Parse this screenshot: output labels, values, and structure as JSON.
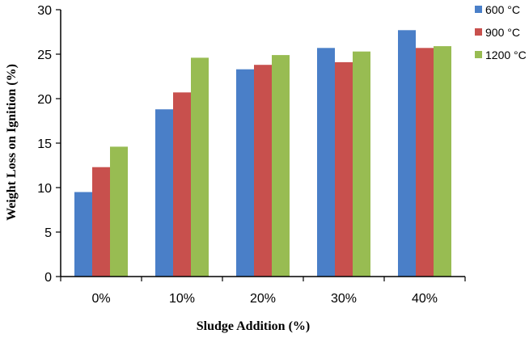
{
  "chart_data": {
    "type": "bar",
    "title": "",
    "xlabel": "Sludge Addition (%)",
    "ylabel": "Weight Loss on Ignition (%)",
    "categories": [
      "0%",
      "10%",
      "20%",
      "30%",
      "40%"
    ],
    "ylim": [
      0,
      30
    ],
    "yticks": [
      0,
      5,
      10,
      15,
      20,
      25,
      30
    ],
    "grid": false,
    "legend_position": "top-right",
    "series": [
      {
        "name": "600 °C",
        "color": "#4a7fc8",
        "values": [
          9.5,
          18.8,
          23.3,
          25.7,
          27.7
        ]
      },
      {
        "name": "900 °C",
        "color": "#c8504d",
        "values": [
          12.3,
          20.7,
          23.8,
          24.1,
          25.7
        ]
      },
      {
        "name": "1200 °C",
        "color": "#98bc52",
        "values": [
          14.6,
          24.6,
          24.9,
          25.3,
          25.9
        ]
      }
    ]
  }
}
